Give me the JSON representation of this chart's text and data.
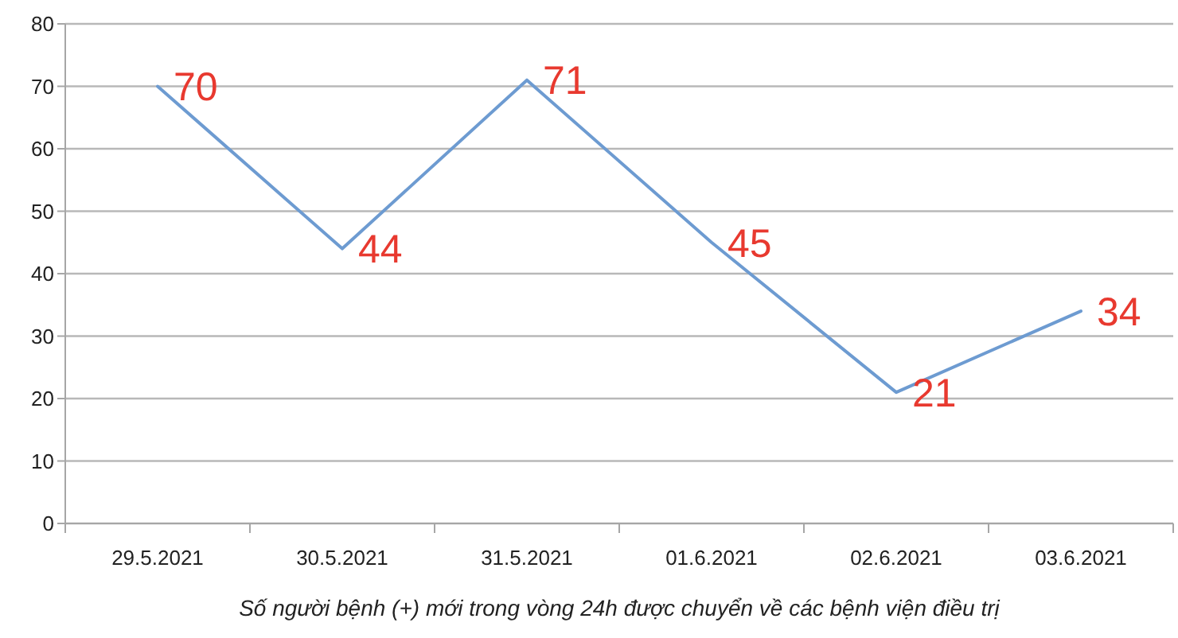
{
  "chart_data": {
    "type": "line",
    "xlabel": "Số người bệnh (+) mới trong vòng 24h được chuyển về các bệnh viện điều trị",
    "categories": [
      "29.5.2021",
      "30.5.2021",
      "31.5.2021",
      "01.6.2021",
      "02.6.2021",
      "03.6.2021"
    ],
    "series": [
      {
        "color": "#6d9bd1",
        "values": [
          70,
          44,
          71,
          45,
          21,
          34
        ]
      }
    ],
    "ylim": [
      0,
      80
    ],
    "yticks": [
      0,
      10,
      20,
      30,
      40,
      50,
      60,
      70,
      80
    ],
    "grid": "y",
    "line_style": "solid",
    "data_labels": true
  }
}
